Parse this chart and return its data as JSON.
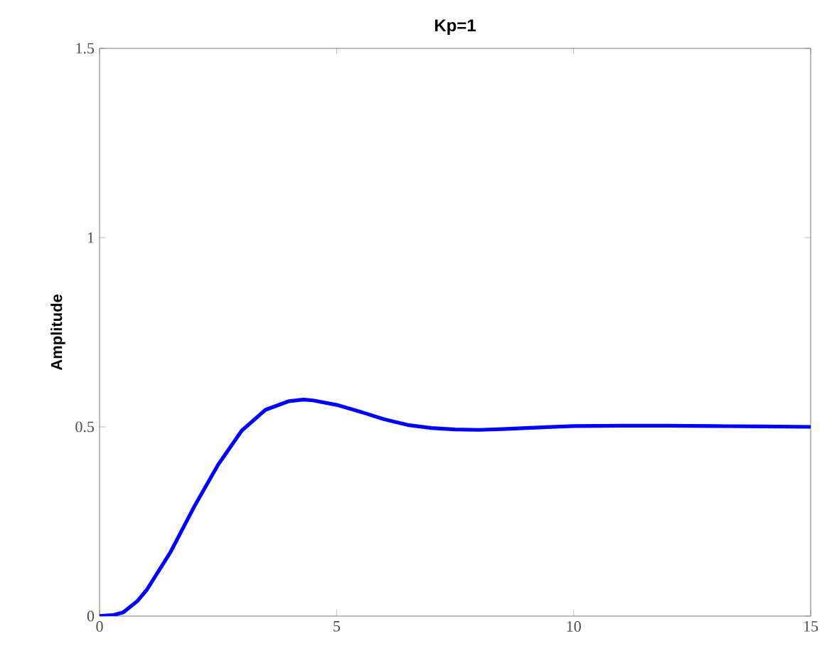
{
  "chart_data": {
    "type": "line",
    "title": "Kp=1",
    "ylabel": "Amplitude",
    "xlim": [
      0,
      15
    ],
    "ylim": [
      0,
      1.5
    ],
    "xticks": [
      0,
      5,
      10,
      15
    ],
    "yticks": [
      0,
      0.5,
      1,
      1.5
    ],
    "grid": false,
    "series": [
      {
        "color": "#0000ff",
        "x": [
          0,
          0.3,
          0.5,
          0.8,
          1,
          1.5,
          2,
          2.5,
          3,
          3.5,
          4,
          4.3,
          4.5,
          5,
          5.5,
          6,
          6.5,
          7,
          7.5,
          8,
          8.5,
          9,
          10,
          11,
          12,
          13,
          14,
          15
        ],
        "values": [
          0,
          0.003,
          0.01,
          0.04,
          0.07,
          0.17,
          0.29,
          0.4,
          0.49,
          0.545,
          0.568,
          0.572,
          0.57,
          0.558,
          0.54,
          0.52,
          0.505,
          0.497,
          0.493,
          0.492,
          0.494,
          0.497,
          0.502,
          0.503,
          0.503,
          0.502,
          0.501,
          0.5
        ]
      }
    ]
  }
}
